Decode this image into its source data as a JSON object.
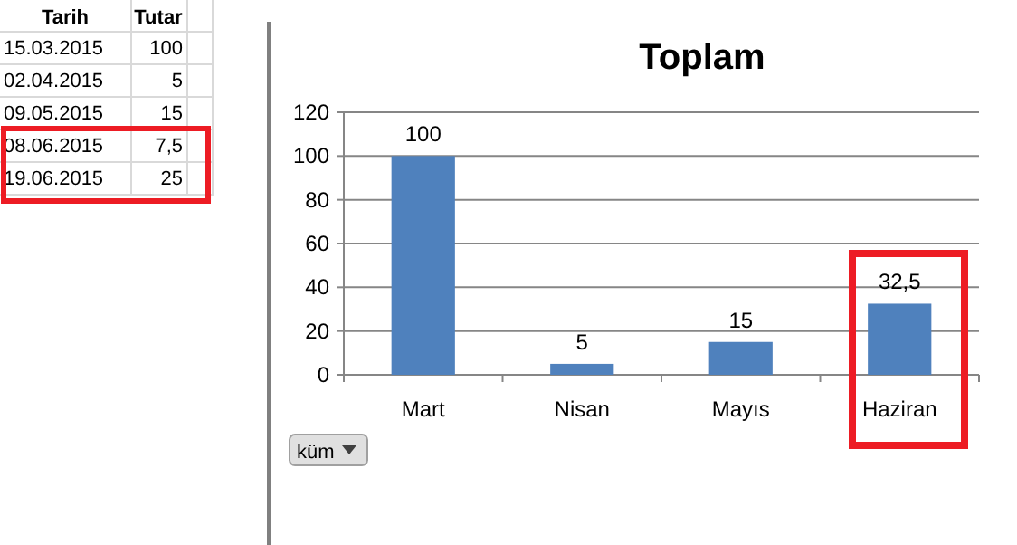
{
  "chart_data": [
    {
      "type": "other",
      "categories": [
        "Tarih",
        "Tutar"
      ],
      "annotations": [
        "15.03.2015",
        "100",
        "02.04.2015",
        "5",
        "09.05.2015",
        "15",
        "08.06.2015",
        "7,5",
        "19.06.2015",
        "25"
      ]
    },
    {
      "type": "bar",
      "title": "Toplam",
      "categories": [
        "Mart",
        "Nisan",
        "Mayıs",
        "Haziran"
      ],
      "values": [
        100,
        5,
        15,
        32.5
      ],
      "color": "#4f81bd",
      "value_labels": [
        "100",
        "5",
        "15",
        "32,5"
      ],
      "ylim": [
        0,
        120
      ],
      "yticks": [
        0,
        20,
        40,
        60,
        80,
        100,
        120
      ],
      "grid": "y",
      "annotations": [
        "küm"
      ]
    }
  ]
}
